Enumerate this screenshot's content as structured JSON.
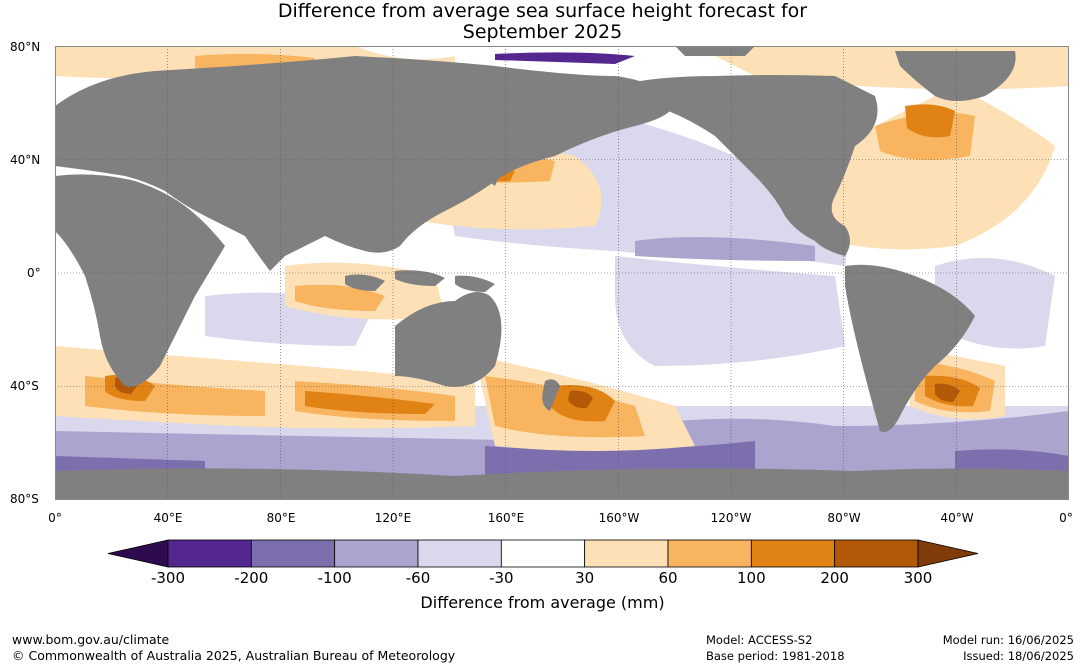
{
  "title_line1": "Difference from average sea surface height forecast for",
  "title_line2": "September 2025",
  "lat_labels": [
    "80°N",
    "40°N",
    "0°",
    "40°S",
    "80°S"
  ],
  "lon_labels": [
    "0°",
    "40°E",
    "80°E",
    "120°E",
    "160°E",
    "160°W",
    "120°W",
    "80°W",
    "40°W",
    "0°"
  ],
  "legend": {
    "ticks": [
      "-300",
      "-200",
      "-100",
      "-60",
      "-30",
      "30",
      "60",
      "100",
      "200",
      "300"
    ],
    "colors": [
      "#2e0a4f",
      "#54278f",
      "#7d6fad",
      "#aba4cf",
      "#d9d8ec",
      "#ffffff",
      "#fde0b6",
      "#f8b45f",
      "#e08214",
      "#b35806",
      "#7f3b08"
    ],
    "title": "Difference from average (mm)"
  },
  "colors": {
    "land": "#808080",
    "grid": "#555555"
  },
  "footer": {
    "url": "www.bom.gov.au/climate",
    "copyright": "© Commonwealth of Australia 2025, Australian Bureau of Meteorology",
    "model": "Model: ACCESS-S2",
    "base_period": "Base period: 1981-2018",
    "model_run": "Model run: 16/06/2025",
    "issued": "Issued: 18/06/2025"
  }
}
